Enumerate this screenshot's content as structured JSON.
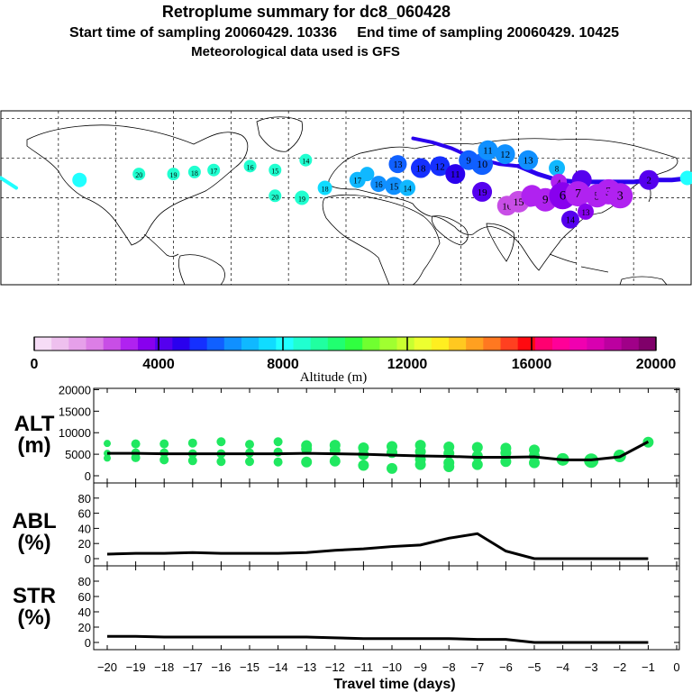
{
  "header": {
    "title": "Retroplume summary for dc8_060428",
    "sampling": "Start time of sampling 20060429. 10336     End time of sampling 20060429. 10425",
    "met": "Meteorological data used is GFS"
  },
  "colorbar": {
    "label": "Altitude (m)",
    "tick_labels": [
      "0",
      "4000",
      "8000",
      "12000",
      "16000",
      "20000"
    ],
    "colors": [
      "#f6dcf6",
      "#eec0ee",
      "#e6a0ea",
      "#dc7ee6",
      "#c84ee6",
      "#b022f0",
      "#8800ee",
      "#5500ee",
      "#2a00ee",
      "#1530ff",
      "#1060ff",
      "#1090ff",
      "#10b8ff",
      "#10dcff",
      "#20ffff",
      "#20ffd0",
      "#20ffa0",
      "#20ff70",
      "#30ff40",
      "#70ff30",
      "#a0ff30",
      "#c8ff30",
      "#ecff30",
      "#ffee20",
      "#ffc820",
      "#ffa020",
      "#ff7820",
      "#ff4020",
      "#ff0a10",
      "#ff0070",
      "#ff0098",
      "#f000b0",
      "#d800b0",
      "#bc00a0",
      "#a00088",
      "#80006a"
    ]
  },
  "map": {
    "points": [
      {
        "lon": -139,
        "lat": 9,
        "label": "",
        "color": "#20ffff",
        "size": 8
      },
      {
        "lon": -108,
        "lat": 12,
        "label": "20",
        "color": "#20ffd0",
        "size": 7
      },
      {
        "lon": -90,
        "lat": 12,
        "label": "19",
        "color": "#20ffd0",
        "size": 7
      },
      {
        "lon": -79,
        "lat": 13,
        "label": "18",
        "color": "#20ffd0",
        "size": 7
      },
      {
        "lon": -69,
        "lat": 14,
        "label": "17",
        "color": "#20ffd0",
        "size": 7
      },
      {
        "lon": -50,
        "lat": 16,
        "label": "16",
        "color": "#20ffd0",
        "size": 7
      },
      {
        "lon": -37,
        "lat": 14,
        "label": "15",
        "color": "#20ffd0",
        "size": 7
      },
      {
        "lon": -37,
        "lat": 1,
        "label": "20",
        "color": "#20ffd0",
        "size": 7
      },
      {
        "lon": -23,
        "lat": 0,
        "label": "19",
        "color": "#20ffd0",
        "size": 8
      },
      {
        "lon": -21,
        "lat": 19,
        "label": "14",
        "color": "#20ffd0",
        "size": 7
      },
      {
        "lon": -11,
        "lat": 5,
        "label": "18",
        "color": "#10dcff",
        "size": 8
      },
      {
        "lon": 6,
        "lat": 9,
        "label": "17",
        "color": "#10b8ff",
        "size": 9
      },
      {
        "lon": 11,
        "lat": 12,
        "label": "",
        "color": "#10b8ff",
        "size": 8
      },
      {
        "lon": 17,
        "lat": 7,
        "label": "16",
        "color": "#1090ff",
        "size": 9
      },
      {
        "lon": 25,
        "lat": 6,
        "label": "15",
        "color": "#1090ff",
        "size": 10
      },
      {
        "lon": 32,
        "lat": 5,
        "label": "14",
        "color": "#10b8ff",
        "size": 9
      },
      {
        "lon": 27,
        "lat": 17,
        "label": "13",
        "color": "#1060ff",
        "size": 10
      },
      {
        "lon": 39,
        "lat": 15,
        "label": "18",
        "color": "#1530ff",
        "size": 11
      },
      {
        "lon": 49,
        "lat": 16,
        "label": "12",
        "color": "#1530ff",
        "size": 11
      },
      {
        "lon": 57,
        "lat": 12,
        "label": "11",
        "color": "#2a00ee",
        "size": 11
      },
      {
        "lon": 64,
        "lat": 19,
        "label": "9",
        "color": "#1060ff",
        "size": 11
      },
      {
        "lon": 71,
        "lat": 17,
        "label": "10",
        "color": "#1060ff",
        "size": 12
      },
      {
        "lon": 74,
        "lat": 24,
        "label": "11",
        "color": "#1090ff",
        "size": 11
      },
      {
        "lon": 83,
        "lat": 22,
        "label": "12",
        "color": "#1090ff",
        "size": 11
      },
      {
        "lon": 95,
        "lat": 19,
        "label": "13",
        "color": "#1090ff",
        "size": 11
      },
      {
        "lon": 71,
        "lat": 3,
        "label": "19",
        "color": "#5500ee",
        "size": 11
      },
      {
        "lon": 96,
        "lat": 0,
        "label": "",
        "color": "#8800ee",
        "size": 10
      },
      {
        "lon": 110,
        "lat": 15,
        "label": "8",
        "color": "#10b8ff",
        "size": 9
      },
      {
        "lon": 111,
        "lat": 8,
        "label": "4",
        "color": "#b022f0",
        "size": 9
      },
      {
        "lon": 123,
        "lat": 9,
        "label": "",
        "color": "#5500ee",
        "size": 11
      },
      {
        "lon": 84,
        "lat": -4,
        "label": "16",
        "color": "#c84ee6",
        "size": 11
      },
      {
        "lon": 90,
        "lat": -2,
        "label": "15",
        "color": "#c84ee6",
        "size": 12
      },
      {
        "lon": 97,
        "lat": 1,
        "label": "",
        "color": "#b022f0",
        "size": 12
      },
      {
        "lon": 104,
        "lat": -1,
        "label": "9",
        "color": "#b022f0",
        "size": 13
      },
      {
        "lon": 113,
        "lat": 1,
        "label": "6",
        "color": "#8800ee",
        "size": 15
      },
      {
        "lon": 121,
        "lat": 2,
        "label": "7",
        "color": "#b022f0",
        "size": 14
      },
      {
        "lon": 131,
        "lat": 1,
        "label": "5",
        "color": "#b022f0",
        "size": 13
      },
      {
        "lon": 137,
        "lat": 3,
        "label": "3",
        "color": "#b022f0",
        "size": 14
      },
      {
        "lon": 143,
        "lat": 1,
        "label": "3",
        "color": "#b022f0",
        "size": 14
      },
      {
        "lon": 117,
        "lat": -11,
        "label": "14",
        "color": "#5500ee",
        "size": 10
      },
      {
        "lon": 125,
        "lat": -7,
        "label": "13",
        "color": "#8800ee",
        "size": 9
      },
      {
        "lon": 158,
        "lat": 9,
        "label": "2",
        "color": "#5500ee",
        "size": 11
      },
      {
        "lon": 178,
        "lat": 10,
        "label": "",
        "color": "#20ffff",
        "size": 8
      }
    ],
    "track_path": [
      [
        90,
        16
      ],
      [
        100,
        12
      ],
      [
        110,
        9
      ],
      [
        120,
        8
      ],
      [
        130,
        8
      ],
      [
        140,
        8
      ],
      [
        150,
        8
      ],
      [
        160,
        9
      ],
      [
        170,
        9
      ],
      [
        180,
        10
      ]
    ],
    "east_track": [
      [
        35,
        30
      ],
      [
        45,
        28
      ],
      [
        55,
        25
      ],
      [
        62,
        22
      ],
      [
        72,
        19
      ],
      [
        80,
        17
      ],
      [
        90,
        16
      ]
    ],
    "west_stub": [
      [
        -180,
        10
      ],
      [
        -172,
        5
      ]
    ]
  },
  "chart_data": [
    {
      "type": "scatter",
      "panel": "ALT",
      "ylabel": "ALT (m)",
      "ylim": [
        0,
        20000
      ],
      "yticks": [
        0,
        5000,
        10000,
        15000,
        20000
      ],
      "xlim": [
        -20,
        0
      ],
      "mean_line": {
        "x": [
          -20,
          -19,
          -18,
          -17,
          -16,
          -15,
          -14,
          -13,
          -12,
          -11,
          -10,
          -9,
          -8,
          -7,
          -6,
          -5,
          -4,
          -3,
          -2,
          -1
        ],
        "y": [
          5200,
          5200,
          5100,
          5100,
          5100,
          5100,
          5100,
          5200,
          5100,
          5000,
          4800,
          4600,
          4500,
          4300,
          4300,
          4400,
          3700,
          3700,
          4400,
          7900
        ]
      },
      "points": [
        {
          "x": -20,
          "y": [
            7500,
            5200,
            4100
          ],
          "r": 4
        },
        {
          "x": -19,
          "y": [
            7400,
            5300,
            4200
          ],
          "r": 5
        },
        {
          "x": -18,
          "y": [
            7400,
            5300,
            3700
          ],
          "r": 5
        },
        {
          "x": -17,
          "y": [
            7600,
            5100,
            3500
          ],
          "r": 5
        },
        {
          "x": -16,
          "y": [
            7900,
            5100,
            3300
          ],
          "r": 5
        },
        {
          "x": -15,
          "y": [
            7300,
            5300,
            3300
          ],
          "r": 5
        },
        {
          "x": -14,
          "y": [
            7900,
            5500,
            3200
          ],
          "r": 5
        },
        {
          "x": -13,
          "y": [
            7000,
            6200,
            3200
          ],
          "r": 6
        },
        {
          "x": -12,
          "y": [
            7100,
            5900,
            3400
          ],
          "r": 6
        },
        {
          "x": -11,
          "y": [
            6500,
            4900,
            2400
          ],
          "r": 6
        },
        {
          "x": -10,
          "y": [
            6800,
            5400,
            1700
          ],
          "r": 6
        },
        {
          "x": -9,
          "y": [
            7100,
            5600,
            3800,
            2600
          ],
          "r": 6
        },
        {
          "x": -8,
          "y": [
            6700,
            5200,
            3000,
            2100
          ],
          "r": 6
        },
        {
          "x": -7,
          "y": [
            6600,
            4600,
            2600
          ],
          "r": 6
        },
        {
          "x": -6,
          "y": [
            6400,
            5300,
            3300
          ],
          "r": 6
        },
        {
          "x": -5,
          "y": [
            6000,
            4600,
            3000
          ],
          "r": 6
        },
        {
          "x": -4,
          "y": [
            3800
          ],
          "r": 7
        },
        {
          "x": -3,
          "y": [
            3500
          ],
          "r": 8
        },
        {
          "x": -2,
          "y": [
            4600
          ],
          "r": 7
        },
        {
          "x": -1,
          "y": [
            7800
          ],
          "r": 6
        }
      ]
    },
    {
      "type": "line",
      "panel": "ABL",
      "ylabel": "ABL (%)",
      "ylim": [
        0,
        100
      ],
      "yticks": [
        0,
        20,
        40,
        60,
        80
      ],
      "x": [
        -20,
        -19,
        -18,
        -17,
        -16,
        -15,
        -14,
        -13,
        -12,
        -11,
        -10,
        -9,
        -8,
        -7,
        -6,
        -5,
        -4,
        -3,
        -2,
        -1
      ],
      "y": [
        6,
        7,
        7,
        8,
        7,
        7,
        7,
        8,
        11,
        13,
        16,
        18,
        27,
        33,
        10,
        0,
        0,
        0,
        0,
        0
      ]
    },
    {
      "type": "line",
      "panel": "STR",
      "ylabel": "STR (%)",
      "ylim": [
        0,
        100
      ],
      "yticks": [
        0,
        20,
        40,
        60,
        80
      ],
      "x": [
        -20,
        -19,
        -18,
        -17,
        -16,
        -15,
        -14,
        -13,
        -12,
        -11,
        -10,
        -9,
        -8,
        -7,
        -6,
        -5,
        -4,
        -3,
        -2,
        -1
      ],
      "y": [
        8,
        8,
        7,
        7,
        7,
        7,
        7,
        7,
        6,
        5,
        5,
        5,
        5,
        4,
        4,
        0,
        0,
        0,
        0,
        0
      ],
      "xlabel": "Travel time (days)",
      "xtick_labels": [
        "−20",
        "−19",
        "−18",
        "−17",
        "−16",
        "−15",
        "−14",
        "−13",
        "−12",
        "−11",
        "−10",
        "−9",
        "−8",
        "−7",
        "−6",
        "−5",
        "−4",
        "−3",
        "−2",
        "−1",
        "0"
      ]
    }
  ],
  "panel_labels": {
    "alt_top": "ALT",
    "alt_bot": "(m)",
    "abl_top": "ABL",
    "abl_bot": "(%)",
    "str_top": "STR",
    "str_bot": "(%)"
  }
}
